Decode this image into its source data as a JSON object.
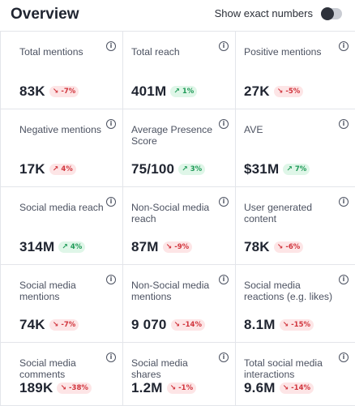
{
  "header": {
    "title": "Overview",
    "toggle_label": "Show exact numbers",
    "toggle_on": false
  },
  "colors": {
    "down_bg": "#fde5e6",
    "down_fg": "#d1353d",
    "up_bg": "#dff6e8",
    "up_fg": "#1f9a57"
  },
  "metrics": [
    {
      "label": "Total mentions",
      "value": "83K",
      "change": "-7%",
      "trend": "down"
    },
    {
      "label": "Total reach",
      "value": "401M",
      "change": "1%",
      "trend": "up"
    },
    {
      "label": "Positive mentions",
      "value": "27K",
      "change": "-5%",
      "trend": "down"
    },
    {
      "label": "Negative mentions",
      "value": "17K",
      "change": "4%",
      "trend": "up-negative"
    },
    {
      "label": "Average Presence Score",
      "value": "75/100",
      "change": "3%",
      "trend": "up"
    },
    {
      "label": "AVE",
      "value": "$31M",
      "change": "7%",
      "trend": "up"
    },
    {
      "label": "Social media reach",
      "value": "314M",
      "change": "4%",
      "trend": "up"
    },
    {
      "label": "Non-Social media reach",
      "value": "87M",
      "change": "-9%",
      "trend": "down"
    },
    {
      "label": "User generated content",
      "value": "78K",
      "change": "-6%",
      "trend": "down"
    },
    {
      "label": "Social media mentions",
      "value": "74K",
      "change": "-7%",
      "trend": "down"
    },
    {
      "label": "Non-Social media mentions",
      "value": "9 070",
      "change": "-14%",
      "trend": "down"
    },
    {
      "label": "Social media reactions (e.g. likes)",
      "value": "8.1M",
      "change": "-15%",
      "trend": "down"
    },
    {
      "label": "Social media comments",
      "value": "189K",
      "change": "-38%",
      "trend": "down"
    },
    {
      "label": "Social media shares",
      "value": "1.2M",
      "change": "-1%",
      "trend": "down"
    },
    {
      "label": "Total social media interactions",
      "value": "9.6M",
      "change": "-14%",
      "trend": "down"
    }
  ]
}
